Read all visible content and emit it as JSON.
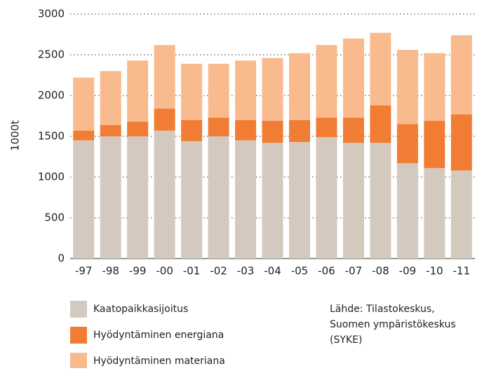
{
  "chart_data": {
    "type": "stacked_bar",
    "y_label": "1000t",
    "categories": [
      "-97",
      "-98",
      "-99",
      "-00",
      "-01",
      "-02",
      "-03",
      "-04",
      "-05",
      "-06",
      "-07",
      "-08",
      "-09",
      "-10",
      "-11"
    ],
    "series": [
      {
        "name": "Kaatopaikkasijoitus",
        "color": "#d3c9be",
        "values": [
          1450,
          1500,
          1500,
          1570,
          1440,
          1500,
          1450,
          1420,
          1430,
          1490,
          1420,
          1420,
          1170,
          1110,
          1080
        ]
      },
      {
        "name": "Hyödyntäminen energiana",
        "color": "#f07d33",
        "values": [
          120,
          140,
          180,
          270,
          260,
          230,
          250,
          270,
          270,
          240,
          310,
          460,
          480,
          580,
          690
        ]
      },
      {
        "name": "Hyödyntäminen materiana",
        "color": "#f9ba8e",
        "values": [
          650,
          660,
          750,
          780,
          690,
          660,
          730,
          770,
          820,
          890,
          970,
          890,
          910,
          830,
          970
        ]
      }
    ],
    "ylim": [
      0,
      3000
    ],
    "yticks": [
      0,
      500,
      1000,
      1500,
      2000,
      2500,
      3000
    ],
    "grid": true,
    "source": [
      "Lähde: Tilastokeskus,",
      "Suomen ympäristökeskus",
      "(SYKE)"
    ]
  }
}
